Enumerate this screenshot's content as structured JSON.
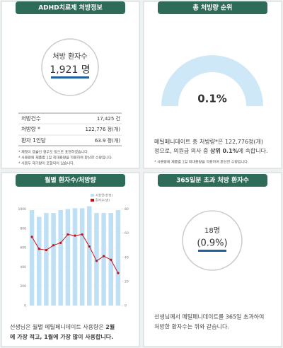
{
  "panels": [
    {
      "title": "ADHD치료제 처방정보",
      "circle_label": "처방 환자수",
      "circle_value": "1,921 명",
      "stats": [
        [
          "처방건수",
          "17,425 건"
        ],
        [
          "처방량 *",
          "122,776 정(개)"
        ],
        [
          "환자 1인당",
          "63.9 정(개)"
        ]
      ],
      "notes": [
        "* 제형이 캡슐인 경우도 정으로 표현하였습니다.",
        "* 사용량에 제품별 1일 최대용량을 적용하여 환산한 수량입니다.",
        "* 사용두 제기량이 포함되어 있습니다."
      ]
    },
    {
      "title": "총 처방량 순위",
      "gauge_value": "0.1%",
      "text_lines": [
        [
          "메틸페니데이트 총 처방량*은 122,776정(개)"
        ],
        [
          "정으로, 의원급 의사 중 ",
          "상위 0.1%",
          "에 속합니다."
        ]
      ],
      "notes": [
        "* 사용량에 제품별 1일 최대용량을 적용하여 환산한 수량입니다."
      ]
    },
    {
      "title": "월별 환자수/처방량",
      "chart": {
        "type": "bar-line",
        "categories": [
          null,
          null,
          null,
          null,
          null,
          null,
          null,
          null,
          null,
          null,
          null,
          null,
          null
        ],
        "series": [
          {
            "name": "사용량(천정)",
            "color": "#bfe0f4",
            "values": [
              990,
              920,
              960,
              960,
              990,
              1000,
              1010,
              1010,
              1030,
              960,
              960,
              960,
              990
            ]
          },
          {
            "name": "환자수(명)",
            "color": "#c0141c",
            "axis": "y2",
            "values": [
              57,
              47,
              46,
              50,
              52,
              59,
              58,
              59,
              49,
              37,
              41,
              38,
              27
            ]
          }
        ],
        "ylim": [
          0,
          1100
        ],
        "yticks": [
          0,
          200,
          400,
          600,
          800,
          1000
        ],
        "y2lim": [
          0,
          88
        ],
        "y2ticks": [
          0,
          20,
          40,
          60,
          80
        ]
      },
      "text_lines": [
        [
          "선생님은 월별 메틸페니데이트 사용량은 ",
          "2월"
        ],
        [
          "에 가장 적고, 1월에 가장 많이 사용합니다."
        ]
      ]
    },
    {
      "title": "365일분 초과 처방 환자수",
      "circle_label": "18명",
      "circle_value": "(0.9%)",
      "text_lines": [
        "선생님께서 메틸페니데이트를 365일 초과하여",
        "처방한 환자수는 위와 같습니다."
      ]
    }
  ]
}
